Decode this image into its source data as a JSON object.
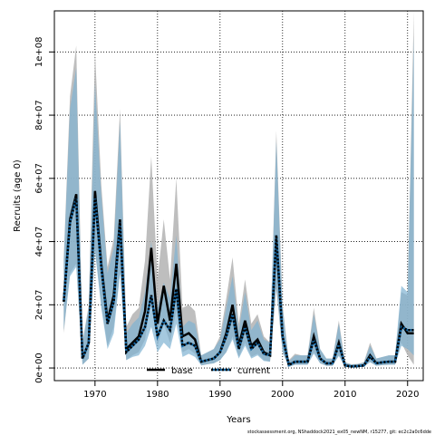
{
  "chart_data": {
    "type": "line",
    "xlabel": "Years",
    "ylabel": "Recruits (age 0)",
    "xlim": [
      1963.5,
      2022.5
    ],
    "ylim": [
      -4000000,
      113000000
    ],
    "xticks": [
      1970,
      1980,
      1990,
      2000,
      2010,
      2020
    ],
    "xtick_labels": [
      "1970",
      "1980",
      "1990",
      "2000",
      "2010",
      "2020"
    ],
    "yticks": [
      0,
      20000000,
      40000000,
      60000000,
      80000000,
      100000000
    ],
    "ytick_labels": [
      "0e+00",
      "2e+07",
      "4e+07",
      "6e+07",
      "8e+07",
      "1e+08"
    ],
    "grid": true,
    "legend_position": "bottom-center",
    "footnote": "stockassessment.org, NShaddock2021_ex05_newNM, r15277, git: ec2c2a0c6dde",
    "x": [
      1965,
      1966,
      1967,
      1968,
      1969,
      1970,
      1971,
      1972,
      1973,
      1974,
      1975,
      1976,
      1977,
      1978,
      1979,
      1980,
      1981,
      1982,
      1983,
      1984,
      1985,
      1986,
      1987,
      1988,
      1989,
      1990,
      1991,
      1992,
      1993,
      1994,
      1995,
      1996,
      1997,
      1998,
      1999,
      2000,
      2001,
      2002,
      2003,
      2004,
      2005,
      2006,
      2007,
      2008,
      2009,
      2010,
      2011,
      2012,
      2013,
      2014,
      2015,
      2016,
      2017,
      2018,
      2019,
      2020,
      2021
    ],
    "series": [
      {
        "name": "base",
        "color": "#000000",
        "band_color": "#b3b3b3",
        "values": [
          21000000,
          47000000,
          55000000,
          3000000,
          8000000,
          56000000,
          33000000,
          15000000,
          23000000,
          47000000,
          6000000,
          8000000,
          10000000,
          18000000,
          38000000,
          14000000,
          26000000,
          15000000,
          33000000,
          10000000,
          11000000,
          9000000,
          2000000,
          2500000,
          3000000,
          5000000,
          11000000,
          20000000,
          7000000,
          15000000,
          7000000,
          9000000,
          5000000,
          4000000,
          41000000,
          10000000,
          1000000,
          2000000,
          2000000,
          2000000,
          10000000,
          3000000,
          1500000,
          1500000,
          8000000,
          800000,
          500000,
          600000,
          800000,
          4000000,
          1500000,
          1800000,
          2000000,
          2000000,
          14000000,
          11000000,
          11000000
        ],
        "lower": [
          11000000,
          30000000,
          33000000,
          1000000,
          3000000,
          38000000,
          20000000,
          7000000,
          13000000,
          30000000,
          2500000,
          4000000,
          5000000,
          9000000,
          22000000,
          7000000,
          14000000,
          8000000,
          18000000,
          5000000,
          6000000,
          4500000,
          800000,
          1200000,
          1500000,
          2500000,
          5000000,
          10000000,
          3500000,
          8000000,
          3500000,
          4500000,
          2500000,
          2000000,
          25000000,
          5000000,
          400000,
          1000000,
          1000000,
          1000000,
          5000000,
          1500000,
          700000,
          700000,
          4000000,
          300000,
          200000,
          300000,
          400000,
          2000000,
          700000,
          900000,
          1000000,
          1000000,
          8000000,
          4000000,
          1000000
        ],
        "upper": [
          35000000,
          86000000,
          102000000,
          8000000,
          20000000,
          100000000,
          58000000,
          32000000,
          41000000,
          82000000,
          13000000,
          17000000,
          19000000,
          34000000,
          67000000,
          28000000,
          47000000,
          28000000,
          60000000,
          19000000,
          20000000,
          18000000,
          4000000,
          5000000,
          6000000,
          10000000,
          22000000,
          35000000,
          14000000,
          28000000,
          14000000,
          17000000,
          10000000,
          8000000,
          75000000,
          20000000,
          2500000,
          4500000,
          4000000,
          4000000,
          19000000,
          6000000,
          3000000,
          3000000,
          15000000,
          1800000,
          1200000,
          1300000,
          1800000,
          8000000,
          3000000,
          3500000,
          4000000,
          4000000,
          24000000,
          23000000,
          113000000
        ]
      },
      {
        "name": "current",
        "color": "#1565a0",
        "band_color": "#7fb2d2",
        "values": [
          21000000,
          46000000,
          54000000,
          3000000,
          8000000,
          54000000,
          32000000,
          14000000,
          21000000,
          46000000,
          5000000,
          7000000,
          9000000,
          13000000,
          23000000,
          10000000,
          15000000,
          12000000,
          25000000,
          7000000,
          8000000,
          7000000,
          2000000,
          2500000,
          3000000,
          5000000,
          10000000,
          17000000,
          6000000,
          13000000,
          6000000,
          8000000,
          4500000,
          4000000,
          42000000,
          10000000,
          900000,
          2000000,
          2000000,
          2000000,
          9000000,
          3000000,
          1500000,
          1500000,
          7500000,
          800000,
          500000,
          600000,
          800000,
          3500000,
          1500000,
          1800000,
          2000000,
          2000000,
          13000000,
          12000000,
          12000000
        ],
        "lower": [
          12000000,
          29000000,
          32000000,
          1000000,
          3000000,
          37000000,
          19000000,
          6000000,
          11000000,
          30000000,
          2500000,
          3500000,
          4000000,
          7000000,
          13000000,
          5000000,
          8000000,
          6000000,
          14000000,
          3500000,
          4500000,
          3500000,
          800000,
          1200000,
          1500000,
          2500000,
          5000000,
          9000000,
          3000000,
          7000000,
          3000000,
          4000000,
          2200000,
          2000000,
          26000000,
          5000000,
          350000,
          1000000,
          1000000,
          1000000,
          4500000,
          1500000,
          700000,
          700000,
          3800000,
          300000,
          200000,
          300000,
          400000,
          1800000,
          700000,
          900000,
          1000000,
          1000000,
          7000000,
          6000000,
          4000000
        ],
        "upper": [
          34000000,
          82000000,
          95000000,
          8000000,
          19000000,
          90000000,
          55000000,
          30000000,
          38000000,
          78000000,
          11000000,
          14000000,
          16000000,
          24000000,
          40000000,
          19000000,
          27000000,
          22000000,
          42000000,
          13000000,
          15000000,
          14000000,
          4000000,
          5000000,
          6000000,
          9000000,
          19000000,
          29000000,
          12000000,
          24000000,
          12000000,
          15000000,
          9000000,
          8000000,
          72000000,
          19000000,
          2000000,
          4000000,
          4000000,
          4000000,
          17000000,
          6000000,
          3000000,
          3000000,
          14000000,
          1700000,
          1100000,
          1200000,
          1700000,
          7000000,
          3000000,
          3500000,
          4000000,
          4000000,
          26000000,
          24000000,
          105000000
        ]
      }
    ]
  }
}
